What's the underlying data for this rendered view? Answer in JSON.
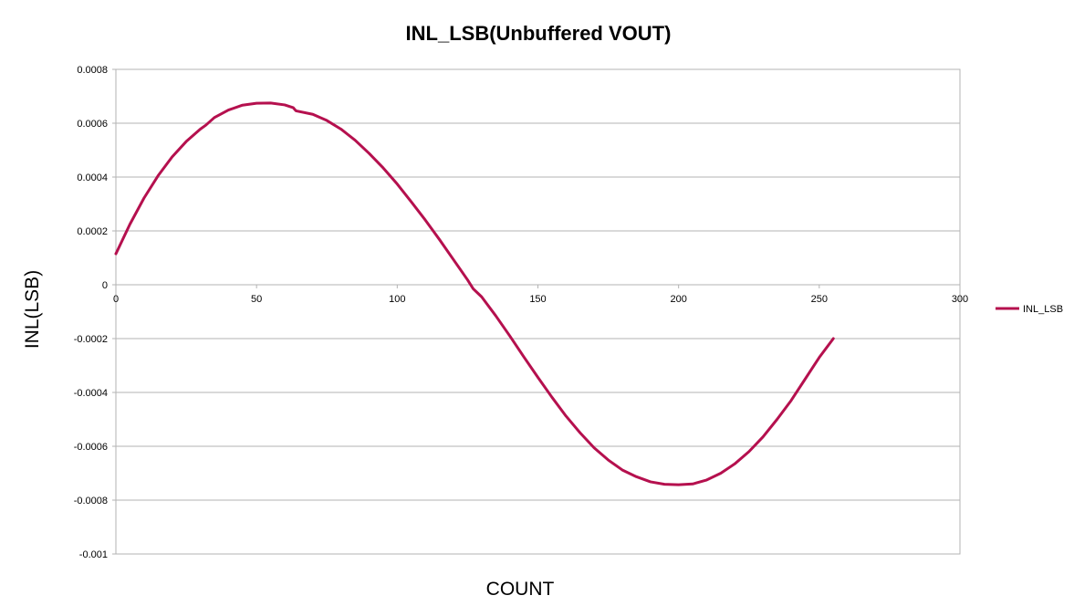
{
  "chart_data": {
    "type": "line",
    "title": "INL_LSB(Unbuffered VOUT)",
    "xlabel": "COUNT",
    "ylabel": "INL(LSB)",
    "xlim": [
      0,
      300
    ],
    "ylim": [
      -0.001,
      0.0008
    ],
    "x_ticks": [
      "0",
      "50",
      "100",
      "150",
      "200",
      "250",
      "300"
    ],
    "y_ticks": [
      "0.0008",
      "0.0006",
      "0.0004",
      "0.0002",
      "0",
      "-0.0002",
      "-0.0004",
      "-0.0006",
      "-0.0008",
      "-0.001"
    ],
    "grid": true,
    "legend": "right",
    "series": [
      {
        "name": "INL_LSB",
        "color": "#b5104e",
        "x": [
          0,
          5,
          10,
          15,
          20,
          25,
          30,
          32,
          35,
          40,
          45,
          50,
          55,
          60,
          63,
          64,
          70,
          75,
          80,
          85,
          90,
          95,
          100,
          105,
          110,
          115,
          120,
          125,
          127,
          128,
          130,
          135,
          140,
          145,
          150,
          155,
          160,
          165,
          170,
          175,
          180,
          185,
          190,
          195,
          200,
          205,
          210,
          215,
          220,
          225,
          230,
          235,
          240,
          245,
          250,
          255
        ],
        "y": [
          0.000115,
          0.000225,
          0.000322,
          0.000405,
          0.000475,
          0.000532,
          0.000578,
          0.000593,
          0.000621,
          0.000649,
          0.000667,
          0.000674,
          0.000675,
          0.000668,
          0.000658,
          0.000646,
          0.000633,
          0.00061,
          0.000578,
          0.000537,
          0.000488,
          0.000434,
          0.000374,
          0.000308,
          0.00024,
          0.000168,
          9.3e-05,
          1.8e-05,
          -1.5e-05,
          -2.5e-05,
          -4.5e-05,
          -0.000115,
          -0.00019,
          -0.000268,
          -0.000344,
          -0.000418,
          -0.000488,
          -0.00055,
          -0.000606,
          -0.000651,
          -0.000688,
          -0.000713,
          -0.000732,
          -0.000741,
          -0.000743,
          -0.00074,
          -0.000725,
          -0.0007,
          -0.000665,
          -0.00062,
          -0.000565,
          -0.0005,
          -0.00043,
          -0.00035,
          -0.00027,
          -0.0002
        ]
      }
    ]
  }
}
